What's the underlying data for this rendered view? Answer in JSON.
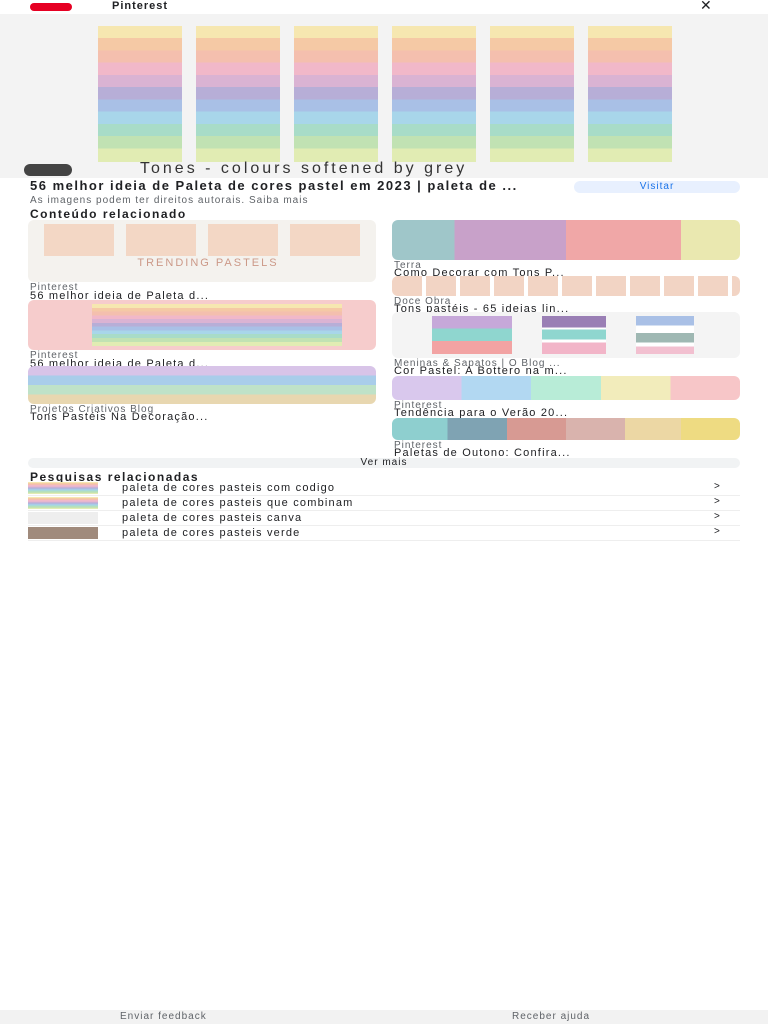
{
  "topbar": {
    "site": "Pinterest"
  },
  "result": {
    "caption": "Tones - colours softened by grey",
    "title": "56 melhor ideia de Paleta de cores pastel em 2023 | paleta de ...",
    "notice": "As imagens podem ter direitos autorais. Saiba mais",
    "visit": "Visitar"
  },
  "related": {
    "heading": "Conteúdo relacionado",
    "image_text": "TRENDING PASTELS",
    "left": [
      {
        "source": "Pinterest",
        "title": "56 melhor ideia de Paleta d..."
      },
      {
        "source": "Pinterest",
        "title": "56 melhor ideia de Paleta d..."
      },
      {
        "source": "Projetos Criativos Blog",
        "title": "Tons Pastéis Na Decoração..."
      }
    ],
    "right": [
      {
        "source": "Terra",
        "title": "Como Decorar com Tons P..."
      },
      {
        "source": "Doce Obra",
        "title": "Tons pastéis - 65 ideias lin..."
      },
      {
        "source": "Meninas & Sapatos | O Blog ...",
        "title": "Cor Pastel: A Bottero na m..."
      },
      {
        "source": "Pinterest",
        "title": "Tendência para o Verão 20..."
      },
      {
        "source": "Pinterest",
        "title": "Paletas de Outono: Confira..."
      }
    ],
    "more": "Ver mais"
  },
  "searches": {
    "heading": "Pesquisas relacionadas",
    "items": [
      "paleta de cores pasteis com codigo",
      "paleta de cores pasteis que combinam",
      "paleta de cores pasteis canva",
      "paleta de cores pasteis verde"
    ]
  },
  "footer": {
    "feedback": "Enviar feedback",
    "help": "Receber ajuda"
  }
}
